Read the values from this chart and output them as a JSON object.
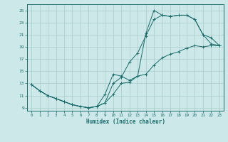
{
  "bg_color": "#cce8e8",
  "grid_color": "#aacccc",
  "line_color": "#1a6b6b",
  "xlabel": "Humidex (Indice chaleur)",
  "xlim": [
    -0.5,
    23.5
  ],
  "ylim": [
    8.5,
    26.0
  ],
  "xticks": [
    0,
    1,
    2,
    3,
    4,
    5,
    6,
    7,
    8,
    9,
    10,
    11,
    12,
    13,
    14,
    15,
    16,
    17,
    18,
    19,
    20,
    21,
    22,
    23
  ],
  "yticks": [
    9,
    11,
    13,
    15,
    17,
    19,
    21,
    23,
    25
  ],
  "line1_x": [
    0,
    1,
    2,
    3,
    4,
    5,
    6,
    7,
    8,
    9,
    10,
    11,
    12,
    13,
    14,
    15,
    16,
    17,
    18,
    19,
    20,
    21,
    22,
    23
  ],
  "line1_y": [
    12.8,
    11.8,
    11.0,
    10.5,
    10.0,
    9.5,
    9.2,
    9.0,
    9.2,
    9.8,
    11.2,
    13.0,
    13.2,
    14.2,
    14.5,
    16.0,
    17.2,
    17.8,
    18.2,
    18.8,
    19.2,
    19.0,
    19.2,
    19.2
  ],
  "line2_x": [
    0,
    1,
    2,
    3,
    4,
    5,
    6,
    7,
    8,
    9,
    10,
    11,
    12,
    13,
    14,
    15,
    16,
    17,
    18,
    19,
    20,
    21,
    22,
    23
  ],
  "line2_y": [
    12.8,
    11.8,
    11.0,
    10.5,
    10.0,
    9.5,
    9.2,
    9.0,
    9.2,
    11.2,
    14.5,
    14.2,
    13.5,
    14.2,
    21.2,
    25.0,
    24.2,
    24.0,
    24.2,
    24.2,
    23.5,
    21.0,
    20.5,
    19.2
  ],
  "line3_x": [
    0,
    1,
    2,
    3,
    4,
    5,
    6,
    7,
    8,
    9,
    10,
    11,
    12,
    13,
    14,
    15,
    16,
    17,
    18,
    19,
    20,
    21,
    22,
    23
  ],
  "line3_y": [
    12.8,
    11.8,
    11.0,
    10.5,
    10.0,
    9.5,
    9.2,
    9.0,
    9.2,
    9.8,
    13.0,
    14.0,
    16.5,
    18.0,
    20.8,
    23.5,
    24.2,
    24.0,
    24.2,
    24.2,
    23.5,
    21.0,
    19.5,
    19.2
  ]
}
